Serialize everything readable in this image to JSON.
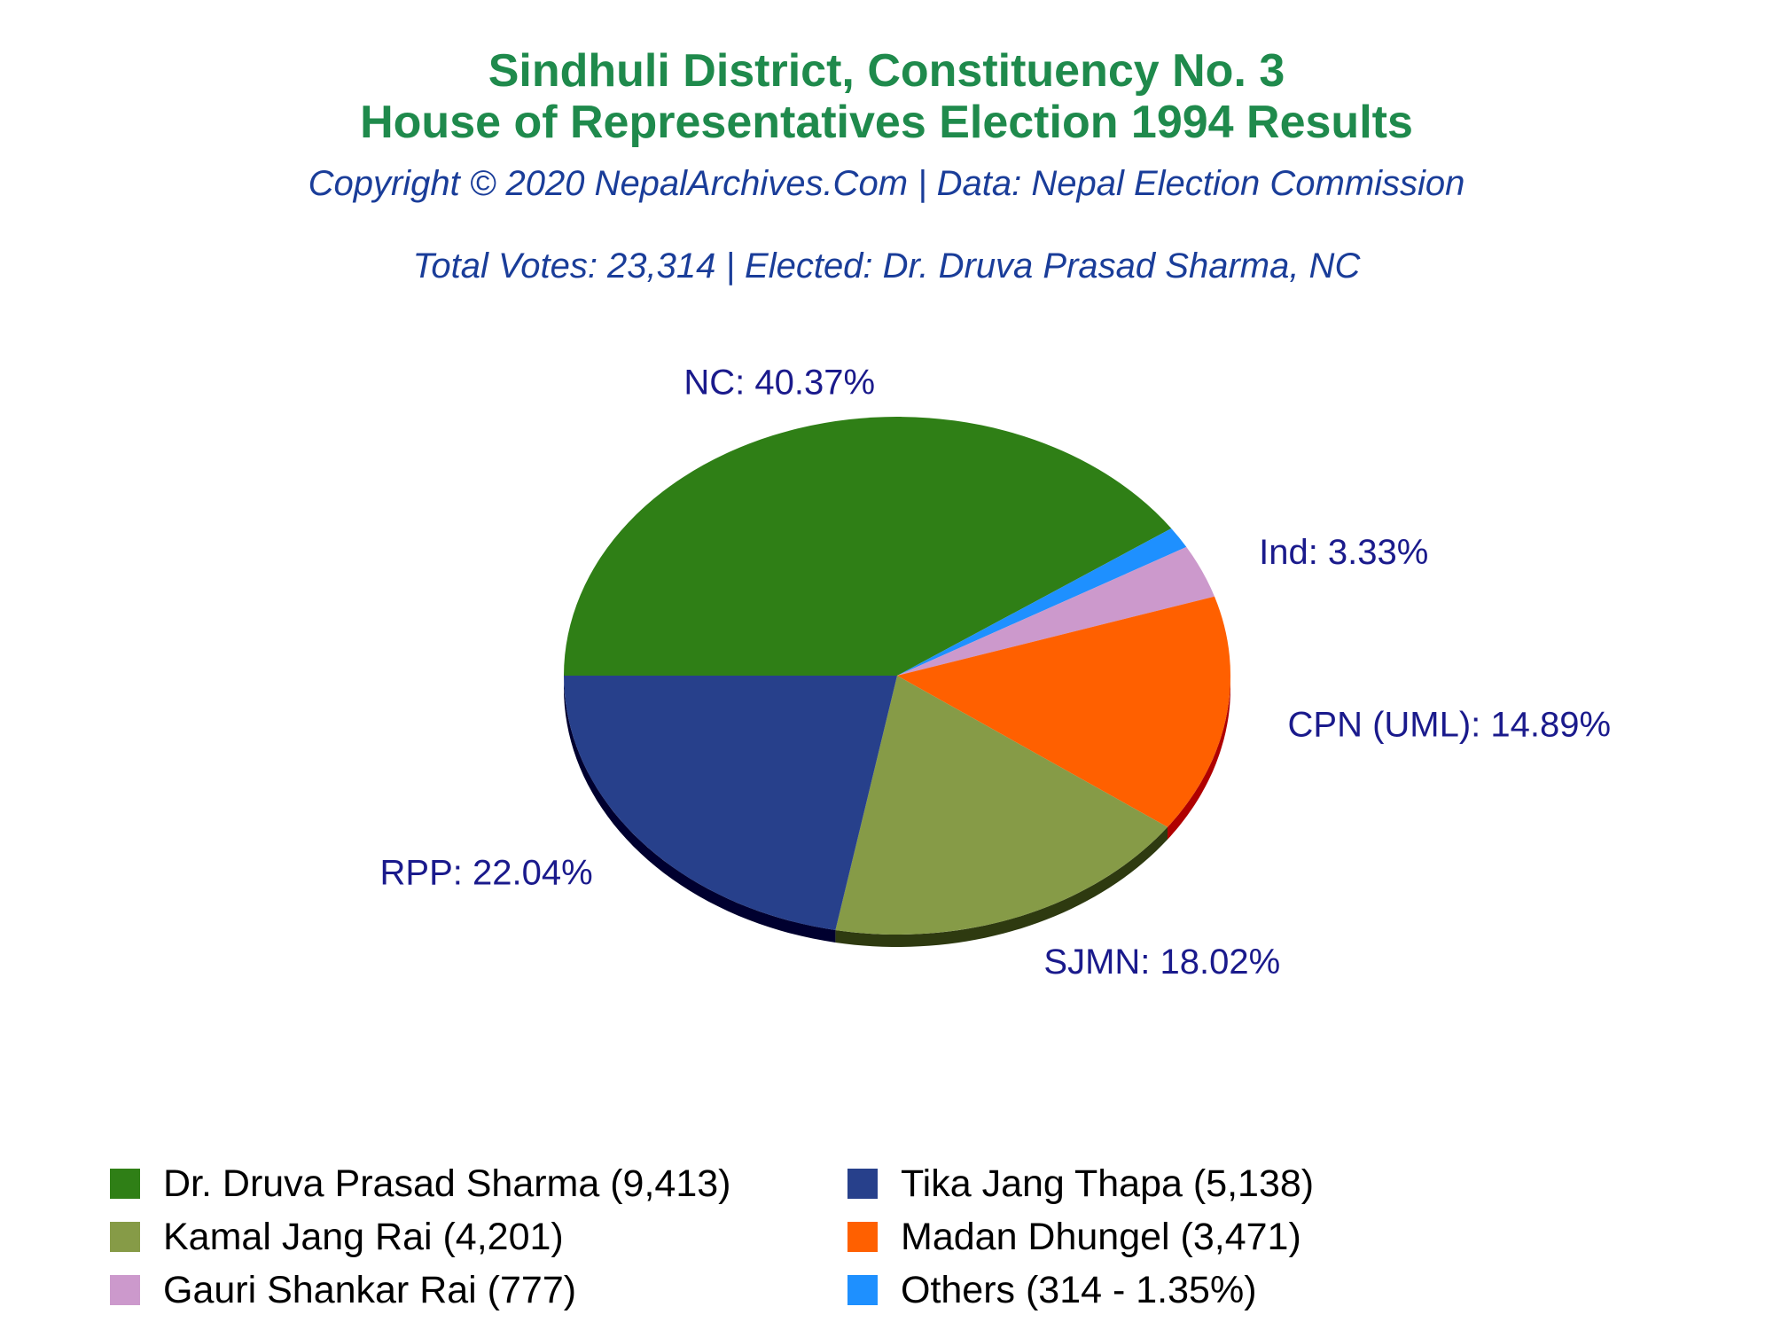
{
  "header": {
    "title_line1": "Sindhuli District, Constituency No. 3",
    "title_line2": "House of Representatives Election 1994 Results",
    "copyright": "Copyright © 2020 NepalArchives.Com | Data: Nepal Election Commission",
    "summary": "Total Votes: 23,314 | Elected: Dr. Druva Prasad Sharma, NC"
  },
  "chart_data": {
    "type": "pie",
    "style": "3d",
    "start_angle_deg": 180,
    "direction": "clockwise",
    "slices": [
      {
        "party": "NC",
        "candidate": "Dr. Druva Prasad Sharma",
        "votes": 9413,
        "percent": 40.37,
        "label": "NC: 40.37%",
        "legend": "Dr. Druva Prasad Sharma (9,413)",
        "color": "#2f7f16",
        "side_color": "#1b4a0c"
      },
      {
        "party": "Others",
        "candidate": "Others",
        "votes": 314,
        "percent": 1.35,
        "label": "",
        "legend": "Others (314 - 1.35%)",
        "color": "#1e90ff",
        "side_color": "#0b4f99"
      },
      {
        "party": "Ind",
        "candidate": "Gauri Shankar Rai",
        "votes": 777,
        "percent": 3.33,
        "label": "Ind: 3.33%",
        "legend": "Gauri Shankar Rai (777)",
        "color": "#cc99cc",
        "side_color": "#7f5a7f"
      },
      {
        "party": "CPN (UML)",
        "candidate": "Madan Dhungel",
        "votes": 3471,
        "percent": 14.89,
        "label": "CPN (UML): 14.89%",
        "legend": "Madan Dhungel (3,471)",
        "color": "#ff6000",
        "side_color": "#b00000"
      },
      {
        "party": "SJMN",
        "candidate": "Kamal Jang Rai",
        "votes": 4201,
        "percent": 18.02,
        "label": "SJMN: 18.02%",
        "legend": "Kamal Jang Rai (4,201)",
        "color": "#869b47",
        "side_color": "#2e3a10"
      },
      {
        "party": "RPP",
        "candidate": "Tika Jang Thapa",
        "votes": 5138,
        "percent": 22.04,
        "label": "RPP: 22.04%",
        "legend": "Tika Jang Thapa (5,138)",
        "color": "#27408b",
        "side_color": "#00002f"
      }
    ],
    "legend_order": [
      "NC",
      "RPP",
      "SJMN",
      "CPN (UML)",
      "Ind",
      "Others"
    ],
    "label_color": "#1a1a8c"
  }
}
